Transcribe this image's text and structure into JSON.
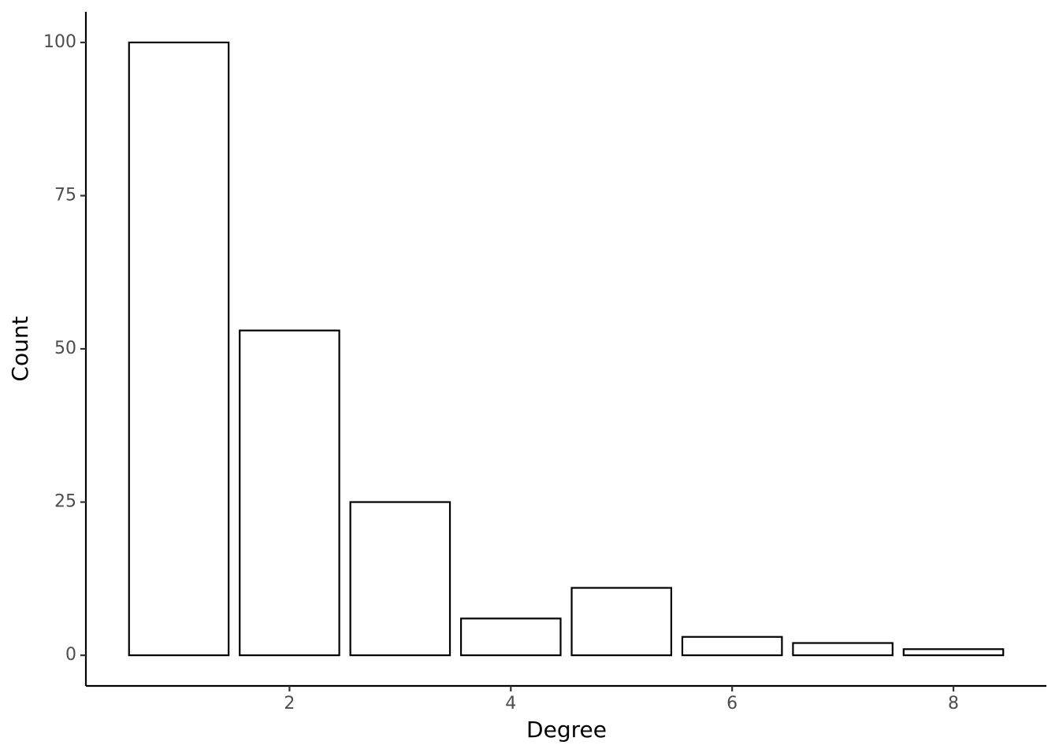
{
  "chart_data": {
    "type": "bar",
    "x_label": "Degree",
    "y_label": "Count",
    "x": [
      1,
      2,
      3,
      4,
      5,
      6,
      7,
      8
    ],
    "values": [
      100,
      53,
      25,
      6,
      11,
      3,
      2,
      1
    ],
    "color": "#ffffff",
    "edgecolor": "#000000",
    "xlim": [
      0.16,
      8.84
    ],
    "xticks": [
      2,
      4,
      6,
      8
    ],
    "ylim": [
      -5,
      105
    ],
    "yticks": [
      0,
      25,
      50,
      75,
      100
    ],
    "grid": false
  }
}
